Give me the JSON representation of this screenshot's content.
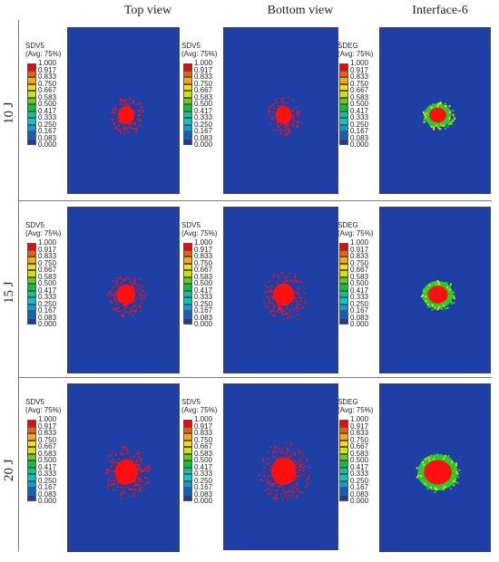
{
  "columns": [
    "Top view",
    "Bottom view",
    "Interface-6"
  ],
  "rows": [
    {
      "label": "10 J",
      "panels": [
        {
          "legend_title": "SDV5",
          "legend_avg": "(Avg: 75%)"
        },
        {
          "legend_title": "SDV5",
          "legend_avg": "(Avg: 75%)"
        },
        {
          "legend_title": "SDEG",
          "legend_avg": "(Avg: 75%)"
        }
      ]
    },
    {
      "label": "15 J",
      "panels": [
        {
          "legend_title": "SDV5",
          "legend_avg": "(Avg: 75%)"
        },
        {
          "legend_title": "SDV5",
          "legend_avg": "(Avg: 75%)"
        },
        {
          "legend_title": "SDEG",
          "legend_avg": "(Avg: 75%)"
        }
      ]
    },
    {
      "label": "20 J",
      "panels": [
        {
          "legend_title": "SDV5",
          "legend_avg": "(Avg: 75%)"
        },
        {
          "legend_title": "SDV5",
          "legend_avg": "(Avg: 75%)"
        },
        {
          "legend_title": "SDEG",
          "legend_avg": "(Avg: 75%)"
        }
      ]
    }
  ],
  "legend_ticks": [
    "1.000",
    "0.917",
    "0.833",
    "0.750",
    "0.667",
    "0.583",
    "0.500",
    "0.417",
    "0.333",
    "0.250",
    "0.167",
    "0.083",
    "0.000"
  ],
  "legend_colors": [
    "#ff0000",
    "#ff5a00",
    "#ffaa00",
    "#ffdc00",
    "#c8e600",
    "#64d200",
    "#00c832",
    "#00c896",
    "#00c8c8",
    "#00a0e6",
    "#0064d2",
    "#1e3ca0"
  ],
  "colors": {
    "background_blue": "#1d3fa6",
    "damage_red": "#ff1010",
    "damage_green": "#2ec82e",
    "damage_yellow": "#e6e600"
  }
}
